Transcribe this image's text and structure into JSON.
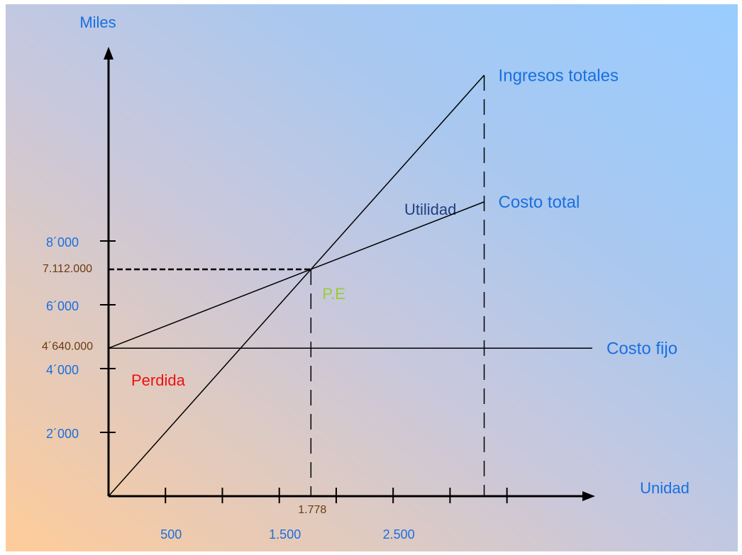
{
  "chart_data": {
    "type": "line",
    "y_axis_label": "Miles",
    "x_axis_label": "Unidad",
    "xlim": [
      0,
      4250
    ],
    "ylim": [
      0,
      14000
    ],
    "xticks": [
      500,
      1000,
      1500,
      2000,
      2500,
      3000,
      3500
    ],
    "xtick_labels": [
      {
        "value": 500,
        "label": "500"
      },
      {
        "value": 1500,
        "label": "1.500"
      },
      {
        "value": 2500,
        "label": "2.500"
      }
    ],
    "yticks": [
      {
        "value": 2000,
        "label": "2´000"
      },
      {
        "value": 4000,
        "label": "4´000"
      },
      {
        "value": 6000,
        "label": "6´000"
      },
      {
        "value": 8000,
        "label": "8´000"
      }
    ],
    "series": [
      {
        "name": "Ingresos totales",
        "color": "#000000",
        "x": [
          0,
          3300
        ],
        "values": [
          0,
          13200
        ]
      },
      {
        "name": "Costo total",
        "color": "#000000",
        "x": [
          0,
          3300
        ],
        "values": [
          4640,
          9228
        ]
      },
      {
        "name": "Costo fijo",
        "color": "#000000",
        "x": [
          0,
          4250
        ],
        "values": [
          4640,
          4640
        ],
        "value_label": "4´640.000"
      }
    ],
    "break_even": {
      "label": "P.E",
      "x": 1778,
      "y": 7112,
      "x_label": "1.778",
      "y_label": "7.112.000"
    },
    "annotations": {
      "profit": "Utilidad",
      "loss": "Perdida"
    }
  }
}
